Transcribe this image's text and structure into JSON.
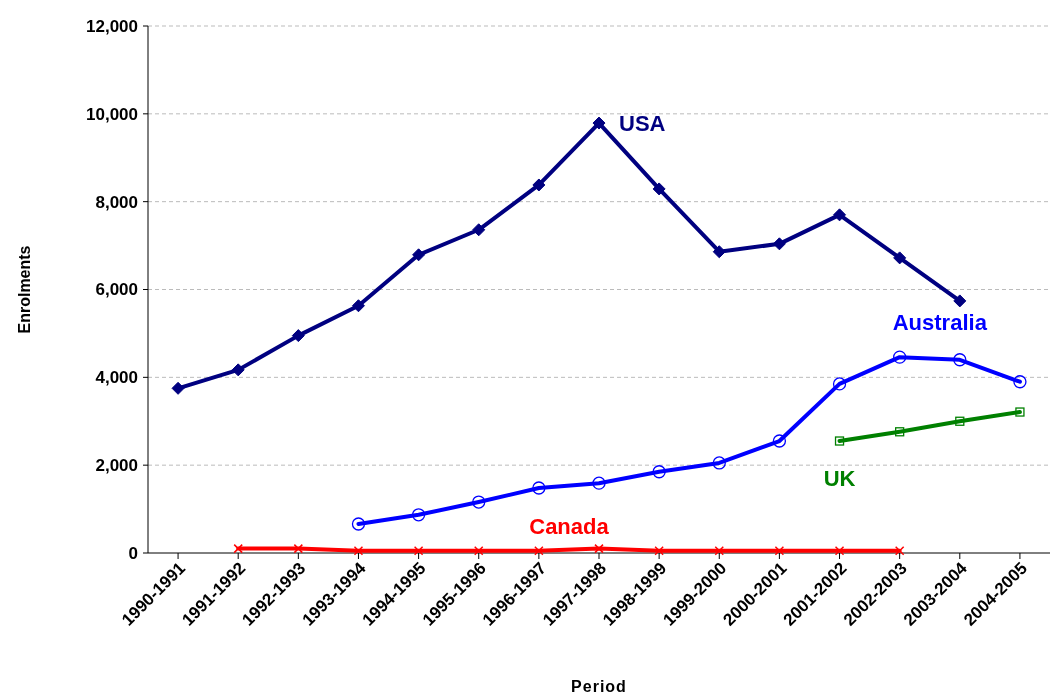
{
  "chart_data": {
    "type": "line",
    "xlabel": "Period",
    "ylabel": "Enrolments",
    "categories": [
      "1990-1991",
      "1991-1992",
      "1992-1993",
      "1993-1994",
      "1994-1995",
      "1995-1996",
      "1996-1997",
      "1997-1998",
      "1998-1999",
      "1999-2000",
      "2000-2001",
      "2001-2002",
      "2002-2003",
      "2003-2004",
      "2004-2005"
    ],
    "ylim": [
      0,
      12000
    ],
    "yticks": [
      {
        "value": 0,
        "label": "0"
      },
      {
        "value": 2000,
        "label": "2,000"
      },
      {
        "value": 4000,
        "label": "4,000"
      },
      {
        "value": 6000,
        "label": "6,000"
      },
      {
        "value": 8000,
        "label": "8,000"
      },
      {
        "value": 10000,
        "label": "10,000"
      },
      {
        "value": 12000,
        "label": "12,000"
      }
    ],
    "grid": "y",
    "series": [
      {
        "name": "USA",
        "color": "#000080",
        "marker": "diamond",
        "values": [
          3750,
          4170,
          4950,
          5630,
          6790,
          7360,
          8380,
          9790,
          8290,
          6860,
          7040,
          7700,
          6720,
          5740,
          null
        ]
      },
      {
        "name": "Australia",
        "color": "#0000ff",
        "marker": "circle",
        "values": [
          null,
          null,
          null,
          660,
          870,
          1160,
          1480,
          1590,
          1850,
          2050,
          2550,
          3850,
          4460,
          4400,
          3900
        ]
      },
      {
        "name": "UK",
        "color": "#008000",
        "marker": "square",
        "values": [
          null,
          null,
          null,
          null,
          null,
          null,
          null,
          null,
          null,
          null,
          null,
          2550,
          2760,
          3000,
          3210
        ]
      },
      {
        "name": "Canada",
        "color": "#ff0000",
        "marker": "cross",
        "values": [
          null,
          100,
          100,
          50,
          50,
          50,
          50,
          100,
          50,
          50,
          50,
          50,
          50,
          null,
          null
        ]
      }
    ]
  }
}
